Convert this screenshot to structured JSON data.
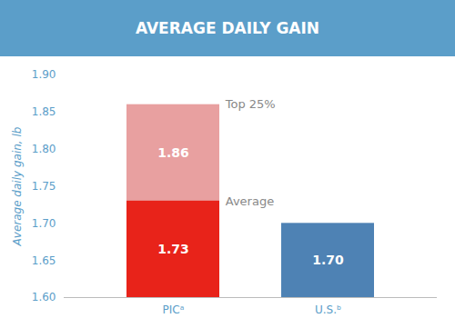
{
  "chart_data": {
    "type": "bar",
    "title": "AVERAGE DAILY GAIN",
    "ylabel": "Average daily gain, lb",
    "categories": [
      "PICᵃ",
      "U.S.ᵇ"
    ],
    "series": [
      {
        "name": "Top 25%",
        "color": "#E8A0A0",
        "values": [
          1.86,
          null
        ],
        "value_labels": [
          "1.86",
          null
        ]
      },
      {
        "name": "Average",
        "colors": [
          "#E8231A",
          "#4E82B4"
        ],
        "values": [
          1.73,
          1.7
        ],
        "value_labels": [
          "1.73",
          "1.70"
        ]
      }
    ],
    "ylim": [
      1.6,
      1.9
    ],
    "yticks": [
      {
        "value": 1.6,
        "label": "1.60"
      },
      1.65,
      {
        "value": 1.7,
        "label": "1.70"
      },
      1.75,
      {
        "value": 1.8,
        "label": "1.80"
      },
      1.85,
      {
        "value": 1.9,
        "label": "1.90"
      }
    ],
    "grid": false,
    "data_labels": true
  }
}
